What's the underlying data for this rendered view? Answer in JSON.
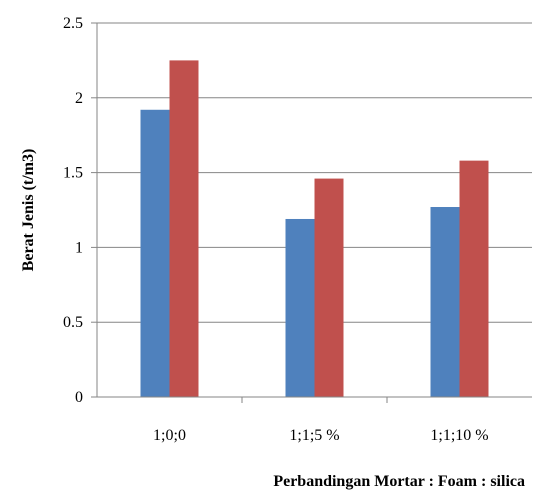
{
  "chart_data": {
    "type": "bar",
    "title": "",
    "xlabel": "Perbandingan Mortar : Foam : silica",
    "ylabel": "Berat Jenis (t/m3)",
    "categories": [
      "1;0;0",
      "1;1;5 %",
      "1;1;10 %"
    ],
    "series": [
      {
        "values": [
          1.92,
          1.19,
          1.27
        ],
        "color": "#4f81bd"
      },
      {
        "values": [
          2.25,
          1.46,
          1.58
        ],
        "color": "#c0504d"
      }
    ],
    "ylim": [
      0,
      2.5
    ],
    "yticks": [
      0,
      0.5,
      1,
      1.5,
      2,
      2.5
    ],
    "ytick_labels": [
      "0",
      "0.5",
      "1",
      "1.5",
      "2",
      "2.5"
    ],
    "grid": true,
    "legend": "none"
  }
}
